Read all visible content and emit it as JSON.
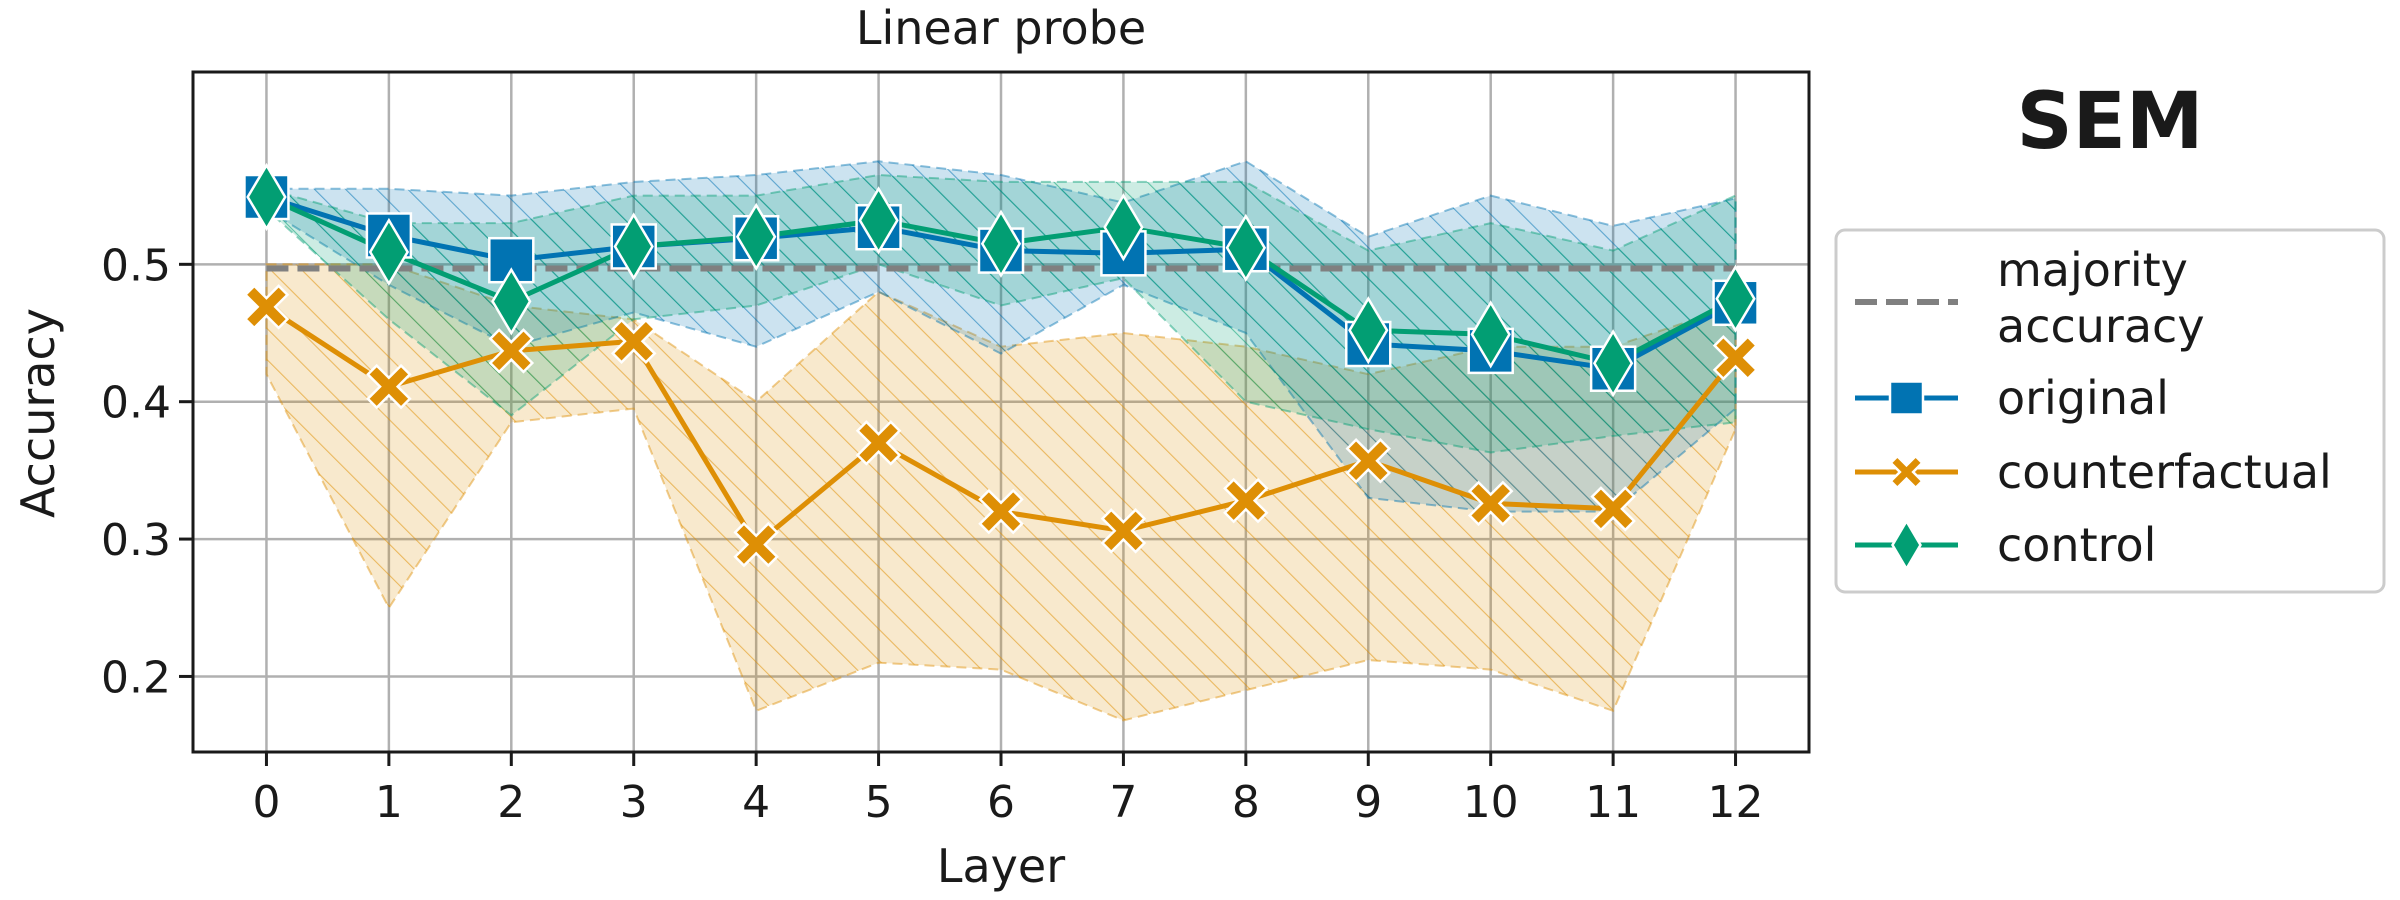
{
  "panel_label": "SEM",
  "chart_data": {
    "type": "line",
    "title": "Linear probe",
    "xlabel": "Layer",
    "ylabel": "Accuracy",
    "x": [
      0,
      1,
      2,
      3,
      4,
      5,
      6,
      7,
      8,
      9,
      10,
      11,
      12
    ],
    "xlim": [
      -0.6,
      12.6
    ],
    "ylim": [
      0.145,
      0.64
    ],
    "yticks": [
      0.2,
      0.3,
      0.4,
      0.5
    ],
    "grid": true,
    "legend_position": "right",
    "majority_accuracy": {
      "name": "majority\naccuracy",
      "value": 0.497,
      "color": "#808080"
    },
    "series": [
      {
        "name": "original",
        "color": "#0173b2",
        "marker": "square",
        "values": [
          0.549,
          0.521,
          0.503,
          0.513,
          0.519,
          0.527,
          0.51,
          0.508,
          0.511,
          0.442,
          0.437,
          0.424,
          0.472
        ],
        "lower": [
          0.54,
          0.485,
          0.44,
          0.465,
          0.44,
          0.48,
          0.435,
          0.485,
          0.45,
          0.33,
          0.32,
          0.32,
          0.395
        ],
        "upper": [
          0.555,
          0.555,
          0.55,
          0.56,
          0.565,
          0.575,
          0.565,
          0.545,
          0.575,
          0.52,
          0.55,
          0.528,
          0.548
        ]
      },
      {
        "name": "counterfactual",
        "color": "#de8f05",
        "marker": "x",
        "values": [
          0.469,
          0.411,
          0.437,
          0.444,
          0.296,
          0.37,
          0.32,
          0.306,
          0.328,
          0.357,
          0.326,
          0.322,
          0.432
        ],
        "lower": [
          0.42,
          0.25,
          0.385,
          0.395,
          0.175,
          0.21,
          0.205,
          0.168,
          0.19,
          0.212,
          0.205,
          0.175,
          0.38
        ],
        "upper": [
          0.5,
          0.5,
          0.47,
          0.46,
          0.4,
          0.48,
          0.44,
          0.45,
          0.44,
          0.42,
          0.44,
          0.44,
          0.47
        ]
      },
      {
        "name": "control",
        "color": "#029e73",
        "marker": "diamond",
        "values": [
          0.549,
          0.509,
          0.473,
          0.513,
          0.52,
          0.532,
          0.515,
          0.527,
          0.512,
          0.452,
          0.449,
          0.428,
          0.475
        ],
        "lower": [
          0.54,
          0.46,
          0.39,
          0.46,
          0.47,
          0.5,
          0.47,
          0.49,
          0.4,
          0.38,
          0.363,
          0.375,
          0.385
        ],
        "upper": [
          0.555,
          0.53,
          0.53,
          0.55,
          0.55,
          0.565,
          0.56,
          0.56,
          0.56,
          0.51,
          0.53,
          0.51,
          0.55
        ]
      }
    ]
  }
}
